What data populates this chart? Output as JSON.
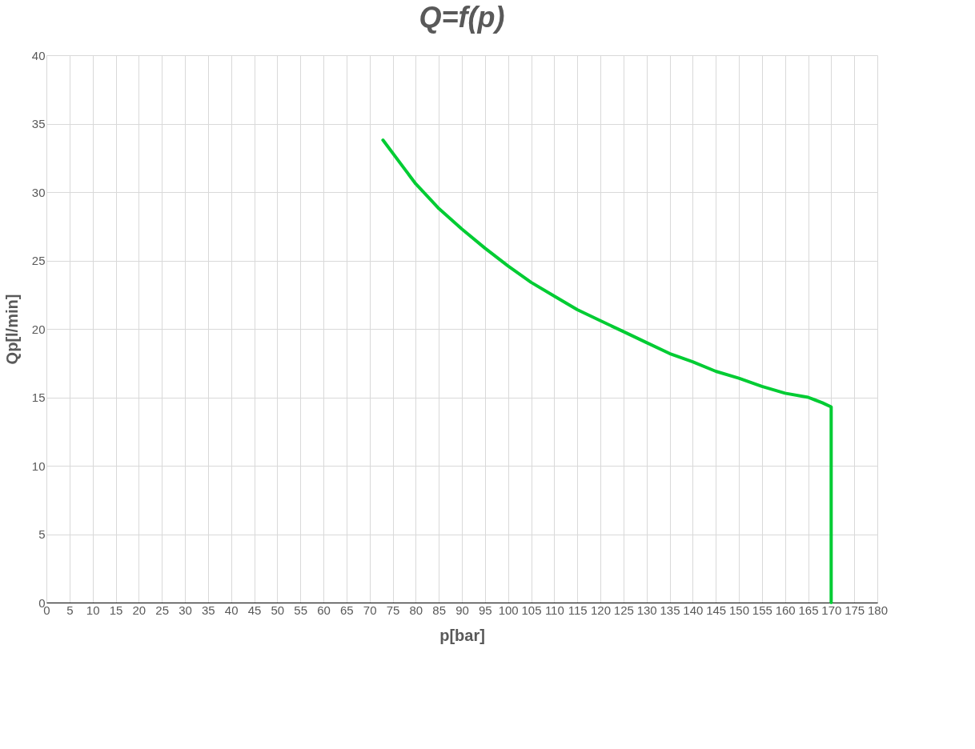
{
  "chart_data": {
    "type": "line",
    "title": "Q=f(p)",
    "xlabel": "p[bar]",
    "ylabel": "Qp[l/min]",
    "series": [
      {
        "color": "#00cc33",
        "x": [
          72.9,
          80,
          85,
          90,
          95,
          100,
          105,
          110,
          115,
          120,
          125,
          130,
          135,
          140,
          145,
          150,
          155,
          160,
          165,
          168.1,
          170,
          170
        ],
        "values": [
          33.8,
          30.6,
          28.8,
          27.3,
          25.9,
          24.6,
          23.4,
          22.4,
          21.4,
          20.6,
          19.8,
          19.0,
          18.2,
          17.6,
          16.9,
          16.4,
          15.8,
          15.3,
          15.0,
          14.6,
          14.3,
          0
        ]
      }
    ],
    "xlim": [
      0,
      180
    ],
    "xticks": [
      0,
      5,
      10,
      15,
      20,
      25,
      30,
      35,
      40,
      45,
      50,
      55,
      60,
      65,
      70,
      75,
      80,
      85,
      90,
      95,
      100,
      105,
      110,
      115,
      120,
      125,
      130,
      135,
      140,
      145,
      150,
      155,
      160,
      165,
      170,
      175,
      180
    ],
    "ylim": [
      0,
      40
    ],
    "yticks": [
      0,
      5,
      10,
      15,
      20,
      25,
      30,
      35,
      40
    ],
    "grid": true,
    "legend": false,
    "marker": "none",
    "line_style": "solid"
  }
}
